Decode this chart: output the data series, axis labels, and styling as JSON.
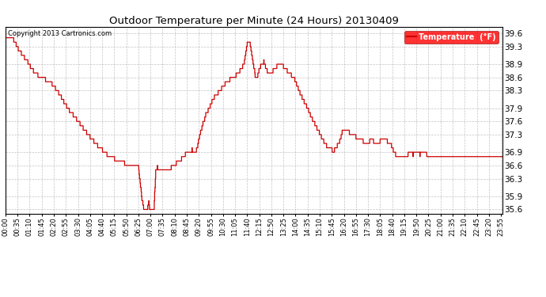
{
  "title": "Outdoor Temperature per Minute (24 Hours) 20130409",
  "copyright": "Copyright 2013 Cartronics.com",
  "legend_label": "Temperature  (°F)",
  "line_color": "#cc0000",
  "bg_color": "#ffffff",
  "plot_bg_color": "#ffffff",
  "grid_color": "#aaaaaa",
  "ylim": [
    35.5,
    39.75
  ],
  "yticks": [
    35.6,
    35.9,
    36.3,
    36.6,
    36.9,
    37.3,
    37.6,
    37.9,
    38.3,
    38.6,
    38.9,
    39.3,
    39.6
  ],
  "total_minutes": 1440,
  "xtick_interval": 35,
  "x_labels": [
    "00:00",
    "00:35",
    "01:10",
    "01:45",
    "02:20",
    "02:55",
    "03:30",
    "04:05",
    "04:40",
    "05:15",
    "05:50",
    "06:25",
    "07:00",
    "07:35",
    "08:10",
    "08:45",
    "09:20",
    "09:55",
    "10:30",
    "11:05",
    "11:40",
    "12:15",
    "12:50",
    "13:25",
    "14:00",
    "14:35",
    "15:10",
    "15:45",
    "16:20",
    "16:55",
    "17:30",
    "18:05",
    "18:40",
    "19:15",
    "19:50",
    "20:25",
    "21:00",
    "21:35",
    "22:10",
    "22:45",
    "23:20",
    "23:55"
  ],
  "keypoints": [
    [
      0,
      39.55
    ],
    [
      20,
      39.5
    ],
    [
      40,
      39.2
    ],
    [
      60,
      39.0
    ],
    [
      80,
      38.75
    ],
    [
      100,
      38.6
    ],
    [
      115,
      38.55
    ],
    [
      130,
      38.5
    ],
    [
      150,
      38.3
    ],
    [
      165,
      38.1
    ],
    [
      180,
      37.9
    ],
    [
      200,
      37.7
    ],
    [
      220,
      37.5
    ],
    [
      240,
      37.3
    ],
    [
      260,
      37.1
    ],
    [
      280,
      36.95
    ],
    [
      300,
      36.8
    ],
    [
      315,
      36.75
    ],
    [
      330,
      36.7
    ],
    [
      345,
      36.65
    ],
    [
      360,
      36.6
    ],
    [
      375,
      36.6
    ],
    [
      385,
      36.55
    ],
    [
      395,
      35.85
    ],
    [
      400,
      35.65
    ],
    [
      405,
      35.6
    ],
    [
      410,
      35.62
    ],
    [
      415,
      35.75
    ],
    [
      418,
      35.6
    ],
    [
      422,
      35.62
    ],
    [
      425,
      35.58
    ],
    [
      430,
      35.6
    ],
    [
      435,
      36.5
    ],
    [
      440,
      36.55
    ],
    [
      445,
      36.5
    ],
    [
      450,
      36.5
    ],
    [
      455,
      36.48
    ],
    [
      460,
      36.52
    ],
    [
      465,
      36.5
    ],
    [
      470,
      36.5
    ],
    [
      475,
      36.52
    ],
    [
      480,
      36.55
    ],
    [
      490,
      36.6
    ],
    [
      500,
      36.7
    ],
    [
      510,
      36.75
    ],
    [
      520,
      36.85
    ],
    [
      530,
      36.9
    ],
    [
      540,
      36.95
    ],
    [
      550,
      36.9
    ],
    [
      555,
      37.0
    ],
    [
      560,
      37.2
    ],
    [
      570,
      37.5
    ],
    [
      580,
      37.75
    ],
    [
      590,
      37.9
    ],
    [
      600,
      38.1
    ],
    [
      620,
      38.3
    ],
    [
      640,
      38.5
    ],
    [
      660,
      38.6
    ],
    [
      675,
      38.7
    ],
    [
      690,
      38.9
    ],
    [
      700,
      39.35
    ],
    [
      707,
      39.45
    ],
    [
      713,
      39.1
    ],
    [
      720,
      38.8
    ],
    [
      725,
      38.55
    ],
    [
      730,
      38.65
    ],
    [
      740,
      38.9
    ],
    [
      748,
      38.95
    ],
    [
      755,
      38.8
    ],
    [
      760,
      38.7
    ],
    [
      775,
      38.75
    ],
    [
      785,
      38.85
    ],
    [
      795,
      38.9
    ],
    [
      805,
      38.85
    ],
    [
      820,
      38.7
    ],
    [
      835,
      38.6
    ],
    [
      845,
      38.4
    ],
    [
      855,
      38.2
    ],
    [
      865,
      38.05
    ],
    [
      875,
      37.9
    ],
    [
      885,
      37.7
    ],
    [
      895,
      37.55
    ],
    [
      905,
      37.4
    ],
    [
      915,
      37.25
    ],
    [
      925,
      37.1
    ],
    [
      935,
      37.0
    ],
    [
      945,
      36.95
    ],
    [
      950,
      36.9
    ],
    [
      955,
      37.0
    ],
    [
      960,
      37.05
    ],
    [
      965,
      37.1
    ],
    [
      970,
      37.2
    ],
    [
      975,
      37.35
    ],
    [
      985,
      37.4
    ],
    [
      995,
      37.35
    ],
    [
      1005,
      37.3
    ],
    [
      1015,
      37.25
    ],
    [
      1025,
      37.2
    ],
    [
      1035,
      37.15
    ],
    [
      1045,
      37.1
    ],
    [
      1055,
      37.15
    ],
    [
      1060,
      37.2
    ],
    [
      1065,
      37.15
    ],
    [
      1075,
      37.1
    ],
    [
      1085,
      37.15
    ],
    [
      1095,
      37.2
    ],
    [
      1105,
      37.15
    ],
    [
      1115,
      37.1
    ],
    [
      1125,
      36.9
    ],
    [
      1130,
      36.85
    ],
    [
      1140,
      36.8
    ],
    [
      1145,
      36.85
    ],
    [
      1155,
      36.85
    ],
    [
      1160,
      36.8
    ],
    [
      1165,
      36.85
    ],
    [
      1175,
      36.9
    ],
    [
      1180,
      36.85
    ],
    [
      1190,
      36.9
    ],
    [
      1200,
      36.85
    ],
    [
      1210,
      36.9
    ],
    [
      1220,
      36.85
    ],
    [
      1240,
      36.8
    ],
    [
      1260,
      36.85
    ],
    [
      1280,
      36.85
    ],
    [
      1300,
      36.85
    ],
    [
      1320,
      36.85
    ],
    [
      1340,
      36.85
    ],
    [
      1360,
      36.85
    ],
    [
      1380,
      36.85
    ],
    [
      1400,
      36.85
    ],
    [
      1420,
      36.85
    ],
    [
      1439,
      36.85
    ]
  ]
}
